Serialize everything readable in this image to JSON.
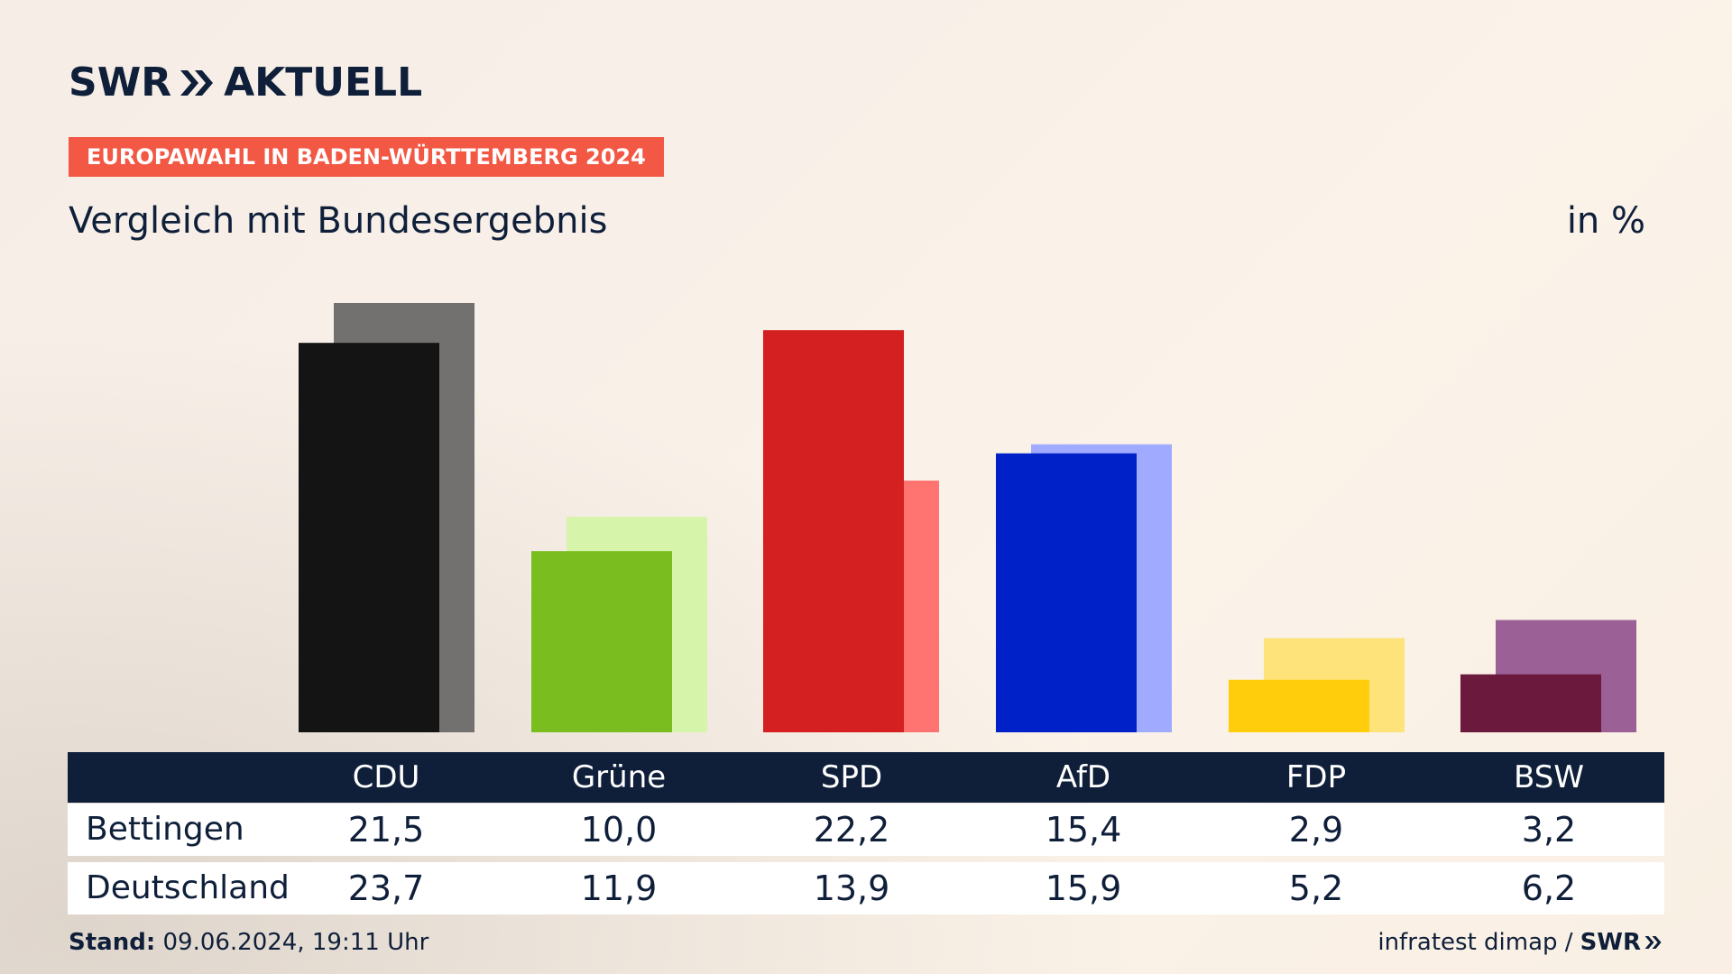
{
  "brand": {
    "logo_text": "SWR",
    "logo_suffix": "AKTUELL",
    "badge": "EUROPAWAHL IN BADEN-WÜRTTEMBERG 2024",
    "subtitle": "Vergleich mit Bundesergebnis",
    "unit": "in %"
  },
  "colors": {
    "background": "#f8f0e8",
    "badge": "#f25844",
    "table_header": "#0f1f3a",
    "text": "#0f1f3a"
  },
  "chart_data": {
    "type": "bar",
    "categories": [
      "CDU",
      "Grüne",
      "SPD",
      "AfD",
      "FDP",
      "BSW"
    ],
    "series": [
      {
        "name": "Bettingen",
        "values": [
          21.5,
          10.0,
          22.2,
          15.4,
          2.9,
          3.2
        ],
        "colors": [
          "#141414",
          "#7abd1e",
          "#d42020",
          "#0021c8",
          "#ffcd0c",
          "#6b1a3e"
        ]
      },
      {
        "name": "Deutschland",
        "values": [
          23.7,
          11.9,
          13.9,
          15.9,
          5.2,
          6.2
        ],
        "colors": [
          "#737170",
          "#d6f5aa",
          "#ff7470",
          "#a0aafe",
          "#fde37a",
          "#9b6096"
        ]
      }
    ],
    "ylim": [
      0,
      25
    ],
    "grid": false
  },
  "table": {
    "header": [
      "CDU",
      "Grüne",
      "SPD",
      "AfD",
      "FDP",
      "BSW"
    ],
    "rows": [
      {
        "label": "Bettingen",
        "values": [
          "21,5",
          "10,0",
          "22,2",
          "15,4",
          "2,9",
          "3,2"
        ]
      },
      {
        "label": "Deutschland",
        "values": [
          "23,7",
          "11,9",
          "13,9",
          "15,9",
          "5,2",
          "6,2"
        ]
      }
    ]
  },
  "footer": {
    "stand_label": "Stand:",
    "stand_value": "09.06.2024, 19:11 Uhr",
    "source": "infratest dimap /",
    "source_brand": "SWR"
  }
}
